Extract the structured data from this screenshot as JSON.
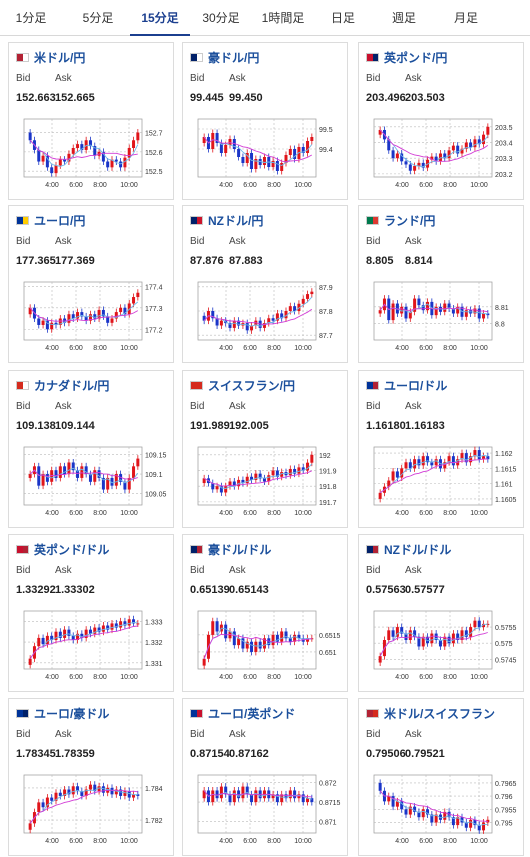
{
  "tabs": [
    {
      "label": "1分足",
      "active": false
    },
    {
      "label": "5分足",
      "active": false
    },
    {
      "label": "15分足",
      "active": true
    },
    {
      "label": "30分足",
      "active": false
    },
    {
      "label": "1時間足",
      "active": false
    },
    {
      "label": "日足",
      "active": false
    },
    {
      "label": "週足",
      "active": false
    },
    {
      "label": "月足",
      "active": false
    }
  ],
  "labels": {
    "bid": "Bid",
    "ask": "Ask"
  },
  "colors": {
    "up": "#e0151b",
    "down": "#1a35c8",
    "ma_short": "#6eb6e8",
    "ma_long": "#d23bd6",
    "grid": "#bbbbbb",
    "link": "#1b4f9c"
  },
  "pairs": [
    {
      "name": "米ドル/円",
      "flag": [
        "#b22234",
        "#ffffff"
      ],
      "bid": "152.663",
      "ask": "152.665",
      "chart_data": {
        "type": "candlestick",
        "yticks": [
          "152.7",
          "152.6",
          "152.5"
        ],
        "ylim": [
          152.47,
          152.77
        ],
        "xticks": [
          "4:00",
          "6:00",
          "8:00",
          "10:00"
        ],
        "close": [
          152.66,
          152.61,
          152.55,
          152.58,
          152.52,
          152.49,
          152.53,
          152.56,
          152.55,
          152.59,
          152.62,
          152.64,
          152.61,
          152.66,
          152.63,
          152.58,
          152.6,
          152.55,
          152.52,
          152.56,
          152.55,
          152.52,
          152.57,
          152.62,
          152.66,
          152.7
        ],
        "open0": 152.7
      }
    },
    {
      "name": "豪ドル/円",
      "flag": [
        "#012169",
        "#ffffff"
      ],
      "bid": "99.445",
      "ask": "99.450",
      "chart_data": {
        "type": "candlestick",
        "yticks": [
          "99.5",
          "99.4"
        ],
        "ylim": [
          99.26,
          99.55
        ],
        "xticks": [
          "4:00",
          "6:00",
          "8:00",
          "10:00"
        ],
        "close": [
          99.46,
          99.4,
          99.48,
          99.43,
          99.38,
          99.42,
          99.45,
          99.4,
          99.36,
          99.33,
          99.38,
          99.3,
          99.35,
          99.32,
          99.36,
          99.31,
          99.34,
          99.29,
          99.33,
          99.37,
          99.4,
          99.35,
          99.41,
          99.38,
          99.44,
          99.46
        ],
        "open0": 99.43
      }
    },
    {
      "name": "英ポンド/円",
      "flag": [
        "#c8102e",
        "#012169"
      ],
      "bid": "203.496",
      "ask": "203.503",
      "chart_data": {
        "type": "candlestick",
        "yticks": [
          "203.5",
          "203.4",
          "203.3",
          "203.2"
        ],
        "ylim": [
          203.18,
          203.55
        ],
        "xticks": [
          "4:00",
          "6:00",
          "8:00",
          "10:00"
        ],
        "close": [
          203.48,
          203.42,
          203.35,
          203.3,
          203.33,
          203.28,
          203.26,
          203.22,
          203.25,
          203.27,
          203.24,
          203.29,
          203.31,
          203.28,
          203.33,
          203.3,
          203.35,
          203.38,
          203.33,
          203.36,
          203.4,
          203.37,
          203.42,
          203.39,
          203.45,
          203.5
        ],
        "open0": 203.45
      }
    },
    {
      "name": "ユーロ/円",
      "flag": [
        "#003399",
        "#ffcc00"
      ],
      "bid": "177.365",
      "ask": "177.369",
      "chart_data": {
        "type": "candlestick",
        "yticks": [
          "177.4",
          "177.3",
          "177.2"
        ],
        "ylim": [
          177.15,
          177.42
        ],
        "xticks": [
          "4:00",
          "6:00",
          "8:00",
          "10:00"
        ],
        "close": [
          177.3,
          177.25,
          177.22,
          177.24,
          177.2,
          177.23,
          177.22,
          177.25,
          177.23,
          177.27,
          177.25,
          177.28,
          177.26,
          177.24,
          177.27,
          177.25,
          177.29,
          177.26,
          177.23,
          177.25,
          177.28,
          177.3,
          177.27,
          177.32,
          177.35,
          177.37
        ],
        "open0": 177.27
      }
    },
    {
      "name": "NZドル/円",
      "flag": [
        "#012169",
        "#cc142b"
      ],
      "bid": "87.876",
      "ask": "87.883",
      "chart_data": {
        "type": "candlestick",
        "yticks": [
          "87.9",
          "87.8",
          "87.7"
        ],
        "ylim": [
          87.68,
          87.92
        ],
        "xticks": [
          "4:00",
          "6:00",
          "8:00",
          "10:00"
        ],
        "close": [
          87.76,
          87.8,
          87.77,
          87.74,
          87.76,
          87.75,
          87.73,
          87.76,
          87.74,
          87.75,
          87.72,
          87.74,
          87.76,
          87.73,
          87.75,
          87.77,
          87.76,
          87.79,
          87.77,
          87.8,
          87.82,
          87.8,
          87.83,
          87.85,
          87.87,
          87.88
        ],
        "open0": 87.78
      }
    },
    {
      "name": "ランド/円",
      "flag": [
        "#007a4d",
        "#de3831"
      ],
      "bid": "8.805",
      "ask": "8.814",
      "chart_data": {
        "type": "candlestick",
        "yticks": [
          "8.81",
          "8.8"
        ],
        "ylim": [
          8.79,
          8.825
        ],
        "xticks": [
          "4:00",
          "6:00",
          "8:00",
          "10:00"
        ],
        "close": [
          8.808,
          8.815,
          8.802,
          8.812,
          8.806,
          8.81,
          8.803,
          8.807,
          8.815,
          8.811,
          8.808,
          8.813,
          8.805,
          8.81,
          8.807,
          8.812,
          8.809,
          8.806,
          8.81,
          8.804,
          8.808,
          8.806,
          8.809,
          8.803,
          8.806,
          8.805
        ],
        "open0": 8.806
      }
    },
    {
      "name": "カナダドル/円",
      "flag": [
        "#d52b1e",
        "#ffffff"
      ],
      "bid": "109.138",
      "ask": "109.144",
      "chart_data": {
        "type": "candlestick",
        "yticks": [
          "109.15",
          "109.1",
          "109.05"
        ],
        "ylim": [
          109.02,
          109.17
        ],
        "xticks": [
          "4:00",
          "6:00",
          "8:00",
          "10:00"
        ],
        "close": [
          109.1,
          109.12,
          109.07,
          109.1,
          109.08,
          109.11,
          109.09,
          109.12,
          109.1,
          109.13,
          109.11,
          109.09,
          109.12,
          109.1,
          109.08,
          109.11,
          109.09,
          109.06,
          109.09,
          109.07,
          109.1,
          109.08,
          109.06,
          109.09,
          109.12,
          109.14
        ],
        "open0": 109.09
      }
    },
    {
      "name": "スイスフラン/円",
      "flag": [
        "#d52b1e",
        "#d52b1e"
      ],
      "bid": "191.989",
      "ask": "192.005",
      "chart_data": {
        "type": "candlestick",
        "yticks": [
          "192",
          "191.9",
          "191.8",
          "191.7"
        ],
        "ylim": [
          191.68,
          192.05
        ],
        "xticks": [
          "4:00",
          "6:00",
          "8:00",
          "10:00"
        ],
        "close": [
          191.85,
          191.82,
          191.78,
          191.8,
          191.76,
          191.8,
          191.83,
          191.8,
          191.84,
          191.82,
          191.86,
          191.84,
          191.88,
          191.85,
          191.83,
          191.87,
          191.9,
          191.86,
          191.89,
          191.87,
          191.91,
          191.88,
          191.92,
          191.9,
          191.95,
          192.0
        ],
        "open0": 191.82
      }
    },
    {
      "name": "ユーロ/ドル",
      "flag": [
        "#003399",
        "#b22234"
      ],
      "bid": "1.16180",
      "ask": "1.16183",
      "chart_data": {
        "type": "candlestick",
        "yticks": [
          "1.162",
          "1.1615",
          "1.161",
          "1.1605"
        ],
        "ylim": [
          1.1603,
          1.1622
        ],
        "xticks": [
          "4:00",
          "6:00",
          "8:00",
          "10:00"
        ],
        "close": [
          1.1607,
          1.1609,
          1.1611,
          1.1614,
          1.1612,
          1.1615,
          1.1617,
          1.1615,
          1.1618,
          1.1616,
          1.1619,
          1.1617,
          1.1616,
          1.1618,
          1.1615,
          1.1617,
          1.1619,
          1.1616,
          1.1618,
          1.162,
          1.1617,
          1.1619,
          1.1621,
          1.1618,
          1.1619,
          1.1618
        ],
        "open0": 1.1605
      }
    },
    {
      "name": "英ポンド/ドル",
      "flag": [
        "#c8102e",
        "#b22234"
      ],
      "bid": "1.33292",
      "ask": "1.33302",
      "chart_data": {
        "type": "candlestick",
        "yticks": [
          "1.333",
          "1.332",
          "1.331"
        ],
        "ylim": [
          1.3307,
          1.3335
        ],
        "xticks": [
          "4:00",
          "6:00",
          "8:00",
          "10:00"
        ],
        "close": [
          1.3312,
          1.3318,
          1.3322,
          1.3319,
          1.3323,
          1.3321,
          1.3325,
          1.3322,
          1.3326,
          1.3323,
          1.3321,
          1.3324,
          1.3322,
          1.3326,
          1.3324,
          1.3327,
          1.3325,
          1.3328,
          1.3326,
          1.3329,
          1.3327,
          1.333,
          1.3328,
          1.3331,
          1.3329,
          1.3329
        ],
        "open0": 1.3309
      }
    },
    {
      "name": "豪ドル/ドル",
      "flag": [
        "#012169",
        "#b22234"
      ],
      "bid": "0.65139",
      "ask": "0.65143",
      "chart_data": {
        "type": "candlestick",
        "yticks": [
          "0.6515",
          "0.651"
        ],
        "ylim": [
          0.6505,
          0.6522
        ],
        "xticks": [
          "4:00",
          "6:00",
          "8:00",
          "10:00"
        ],
        "close": [
          0.6508,
          0.6515,
          0.6519,
          0.6516,
          0.6518,
          0.6514,
          0.6516,
          0.6512,
          0.6514,
          0.6511,
          0.6513,
          0.651,
          0.6513,
          0.6511,
          0.6514,
          0.6512,
          0.6515,
          0.6513,
          0.6516,
          0.6514,
          0.6513,
          0.6515,
          0.6514,
          0.6513,
          0.6514,
          0.6514
        ],
        "open0": 0.6506
      }
    },
    {
      "name": "NZドル/ドル",
      "flag": [
        "#012169",
        "#b22234"
      ],
      "bid": "0.57563",
      "ask": "0.57577",
      "chart_data": {
        "type": "candlestick",
        "yticks": [
          "0.5755",
          "0.575",
          "0.5745"
        ],
        "ylim": [
          0.5742,
          0.576
        ],
        "xticks": [
          "4:00",
          "6:00",
          "8:00",
          "10:00"
        ],
        "close": [
          0.5746,
          0.5751,
          0.5754,
          0.5752,
          0.5755,
          0.5753,
          0.5751,
          0.5754,
          0.5752,
          0.5749,
          0.5752,
          0.575,
          0.5753,
          0.5751,
          0.5749,
          0.5752,
          0.575,
          0.5753,
          0.5751,
          0.5754,
          0.5752,
          0.5755,
          0.5757,
          0.5755,
          0.5756,
          0.5756
        ],
        "open0": 0.5744
      }
    },
    {
      "name": "ユーロ/豪ドル",
      "flag": [
        "#003399",
        "#012169"
      ],
      "bid": "1.78345",
      "ask": "1.78359",
      "chart_data": {
        "type": "candlestick",
        "yticks": [
          "1.784",
          "1.782"
        ],
        "ylim": [
          1.7812,
          1.7848
        ],
        "xticks": [
          "4:00",
          "6:00",
          "8:00",
          "10:00"
        ],
        "close": [
          1.7818,
          1.7825,
          1.7831,
          1.7828,
          1.7834,
          1.7832,
          1.7837,
          1.7835,
          1.7839,
          1.7836,
          1.7841,
          1.7838,
          1.7835,
          1.7839,
          1.7842,
          1.7838,
          1.7841,
          1.7837,
          1.784,
          1.7836,
          1.7839,
          1.7835,
          1.7838,
          1.7834,
          1.7836,
          1.7835
        ],
        "open0": 1.7814
      }
    },
    {
      "name": "ユーロ/英ポンド",
      "flag": [
        "#003399",
        "#c8102e"
      ],
      "bid": "0.87154",
      "ask": "0.87162",
      "chart_data": {
        "type": "candlestick",
        "yticks": [
          "0.872",
          "0.8715",
          "0.871"
        ],
        "ylim": [
          0.8707,
          0.8722
        ],
        "xticks": [
          "4:00",
          "6:00",
          "8:00",
          "10:00"
        ],
        "close": [
          0.8718,
          0.8715,
          0.8718,
          0.8716,
          0.8719,
          0.8717,
          0.8715,
          0.8718,
          0.8716,
          0.8719,
          0.8717,
          0.8715,
          0.8718,
          0.8716,
          0.8718,
          0.8716,
          0.8717,
          0.8715,
          0.8717,
          0.8716,
          0.8718,
          0.8716,
          0.8717,
          0.8715,
          0.8716,
          0.8715
        ],
        "open0": 0.8716
      }
    },
    {
      "name": "米ドル/スイスフラン",
      "flag": [
        "#b22234",
        "#d52b1e"
      ],
      "bid": "0.79506",
      "ask": "0.79521",
      "chart_data": {
        "type": "candlestick",
        "yticks": [
          "0.7965",
          "0.796",
          "0.7955",
          "0.795"
        ],
        "ylim": [
          0.7946,
          0.7968
        ],
        "xticks": [
          "4:00",
          "6:00",
          "8:00",
          "10:00"
        ],
        "close": [
          0.7962,
          0.7958,
          0.796,
          0.7956,
          0.7958,
          0.7955,
          0.7953,
          0.7956,
          0.7954,
          0.7952,
          0.7955,
          0.7953,
          0.795,
          0.7953,
          0.7951,
          0.7954,
          0.7952,
          0.7949,
          0.7952,
          0.795,
          0.7948,
          0.7951,
          0.7949,
          0.7947,
          0.795,
          0.7951
        ],
        "open0": 0.7965
      }
    }
  ]
}
